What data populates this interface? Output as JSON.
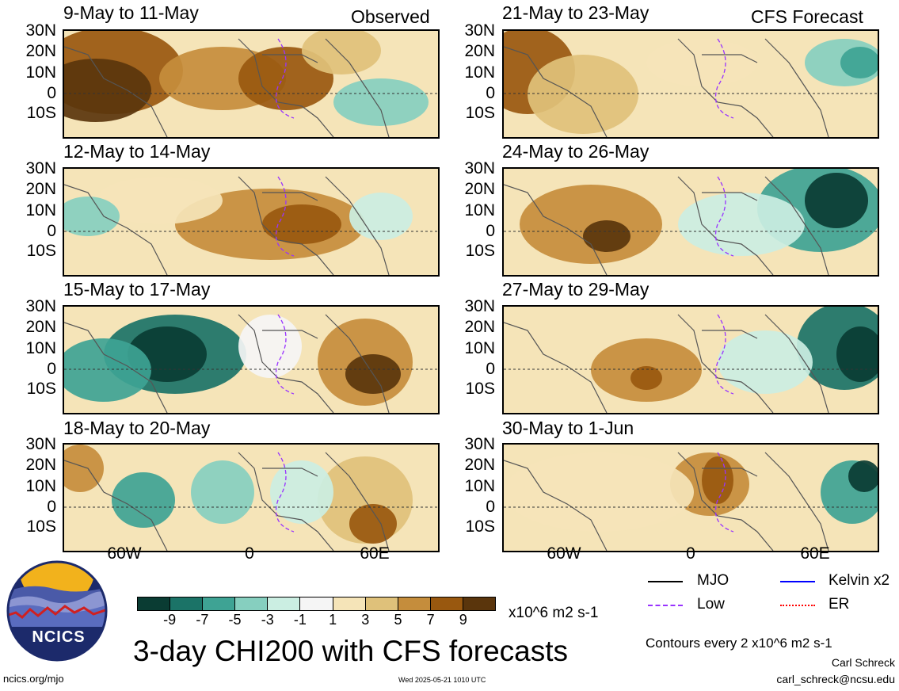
{
  "header": {
    "observed_tag": "Observed",
    "forecast_tag": "CFS Forecast"
  },
  "panels_left": [
    {
      "title": "9-May to 11-May"
    },
    {
      "title": "12-May to 14-May"
    },
    {
      "title": "15-May to 17-May"
    },
    {
      "title": "18-May to 20-May"
    }
  ],
  "panels_right": [
    {
      "title": "21-May to 23-May"
    },
    {
      "title": "24-May to 26-May"
    },
    {
      "title": "27-May to 29-May"
    },
    {
      "title": "30-May to 1-Jun"
    }
  ],
  "lat_labels": [
    "30N",
    "20N",
    "10N",
    "0",
    "10S"
  ],
  "lon_labels": [
    "60W",
    "0",
    "60E"
  ],
  "colorbar": {
    "colors": [
      "#0a3c33",
      "#1b7367",
      "#3ea394",
      "#86cfbf",
      "#cbeee2",
      "#f5f5f5",
      "#f5e4b8",
      "#dfc17a",
      "#c58d3c",
      "#99580f",
      "#5a350c"
    ],
    "ticks": [
      "-9",
      "-7",
      "-5",
      "-3",
      "-1",
      "1",
      "3",
      "5",
      "7",
      "9"
    ],
    "units": "x10^6 m2 s-1"
  },
  "main_title": "3-day CHI200 with CFS forecasts",
  "legend": {
    "items": [
      {
        "label": "MJO",
        "color": "#000000"
      },
      {
        "label": "Kelvin x2",
        "color": "#0000ff"
      },
      {
        "label": "Low",
        "color": "#9933ff"
      },
      {
        "label": "ER",
        "color": "#ff0000"
      }
    ]
  },
  "contour_note": "Contours every 2 x10^6 m2 s-1",
  "author": "Carl Schreck",
  "email": "carl_schreck@ncsu.edu",
  "site": "ncics.org/mjo",
  "timestamp": "Wed 2025-05-21 1010 UTC",
  "logo": {
    "text": "NCICS"
  }
}
